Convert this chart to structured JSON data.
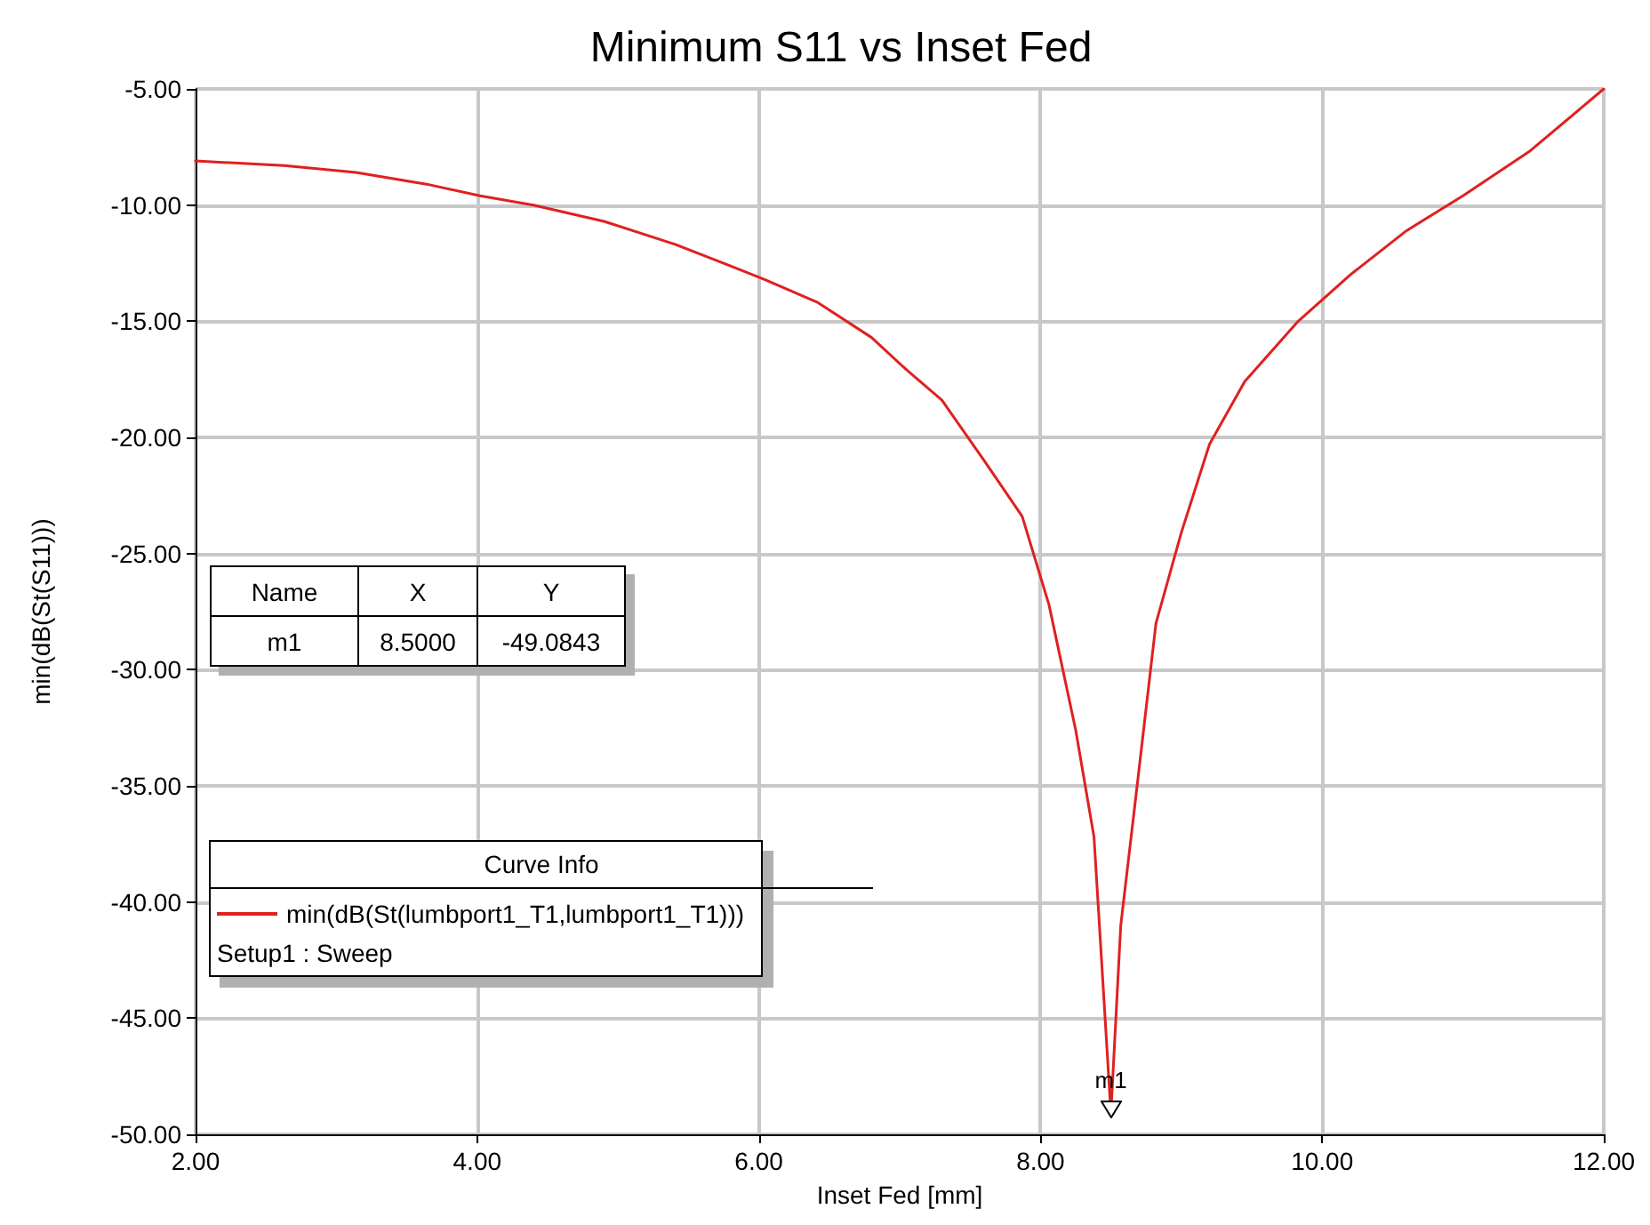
{
  "chart_data": {
    "type": "line",
    "title": "Minimum S11 vs Inset Fed",
    "xlabel": "Inset Fed [mm]",
    "ylabel": "min(dB(St(S11)))",
    "legend_title": "Curve Info",
    "x": [
      2.0,
      2.63,
      3.14,
      3.64,
      4.02,
      4.4,
      4.9,
      5.41,
      5.79,
      6.04,
      6.42,
      6.8,
      7.05,
      7.3,
      7.6,
      7.87,
      8.06,
      8.25,
      8.38,
      8.5,
      8.57,
      8.69,
      8.82,
      9.0,
      9.2,
      9.45,
      9.83,
      10.2,
      10.6,
      11.0,
      11.47,
      12.0
    ],
    "series": [
      {
        "name": "min(dB(St(lumbport1_T1,lumbport1_T1)))",
        "color": "#e02020",
        "values": [
          -8.1,
          -8.3,
          -8.6,
          -9.1,
          -9.6,
          -10.0,
          -10.7,
          -11.7,
          -12.6,
          -13.2,
          -14.2,
          -15.7,
          -17.1,
          -18.4,
          -21.0,
          -23.4,
          -27.2,
          -32.6,
          -37.2,
          -49.0843,
          -41.0,
          -34.8,
          -28.0,
          -24.1,
          -20.3,
          -17.6,
          -15.0,
          -13.0,
          -11.1,
          -9.6,
          -7.7,
          -5.0
        ]
      }
    ],
    "xlim": [
      2,
      12
    ],
    "xticks": [
      {
        "value": 2,
        "label": "2.00"
      },
      {
        "value": 4,
        "label": "4.00"
      },
      {
        "value": 6,
        "label": "6.00"
      },
      {
        "value": 8,
        "label": "8.00"
      },
      {
        "value": 10,
        "label": "10.00"
      },
      {
        "value": 12,
        "label": "12.00"
      }
    ],
    "ylim": [
      -50,
      -5
    ],
    "yticks": [
      {
        "value": -50,
        "label": "-50.00"
      },
      {
        "value": -45,
        "label": "-45.00"
      },
      {
        "value": -40,
        "label": "-40.00"
      },
      {
        "value": -35,
        "label": "-35.00"
      },
      {
        "value": -30,
        "label": "-30.00"
      },
      {
        "value": -25,
        "label": "-25.00"
      },
      {
        "value": -20,
        "label": "-20.00"
      },
      {
        "value": -15,
        "label": "-15.00"
      },
      {
        "value": -10,
        "label": "-10.00"
      },
      {
        "value": -5,
        "label": "-5.00"
      }
    ],
    "grid": true,
    "legend": "bottom left",
    "marker": "none",
    "line_style": "solid",
    "annotations": [
      "Name",
      "X",
      "Y",
      "m1",
      "8.5000",
      "-49.0843",
      {
        "text": "m1",
        "x": 8.5,
        "y": -49.0843
      },
      "Setup1 : Sweep"
    ]
  }
}
